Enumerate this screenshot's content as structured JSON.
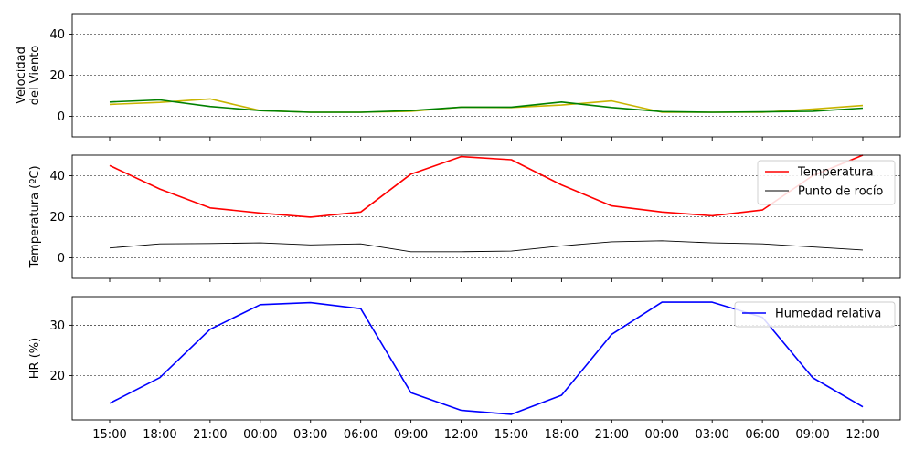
{
  "chart_data": [
    {
      "type": "line",
      "ylabel_lines": [
        "Velocidad",
        "del Viento"
      ],
      "ylim": [
        -10,
        50
      ],
      "yticks": [
        0,
        20,
        40
      ],
      "grid": "horizontal-dashed",
      "legend": "none",
      "series": [
        {
          "color": "#c8b400",
          "values": [
            5.8,
            6.8,
            8.5,
            2.8,
            2.0,
            2.0,
            2.5,
            4.5,
            4.3,
            5.5,
            7.5,
            2.0,
            2.0,
            2.0,
            3.5,
            5.3
          ]
        },
        {
          "color": "#008000",
          "values": [
            7.0,
            8.0,
            4.8,
            2.8,
            2.0,
            2.0,
            2.8,
            4.5,
            4.5,
            7.0,
            4.3,
            2.3,
            2.0,
            2.2,
            2.5,
            4.0
          ]
        }
      ]
    },
    {
      "type": "line",
      "ylabel": "Temperatura (ºC)",
      "ylim": [
        -10,
        50
      ],
      "yticks": [
        0,
        20,
        40
      ],
      "grid": "horizontal-dashed",
      "legend": "top-right",
      "series": [
        {
          "name": "Temperatura",
          "color": "#ff0000",
          "values": [
            45.0,
            33.5,
            24.3,
            21.8,
            19.8,
            22.3,
            40.8,
            49.3,
            47.8,
            35.5,
            25.3,
            22.3,
            20.5,
            23.3,
            40.0,
            50.0
          ]
        },
        {
          "name": "Punto de rocío",
          "color": "#000000",
          "values": [
            4.8,
            6.8,
            7.0,
            7.3,
            6.3,
            6.8,
            3.0,
            3.0,
            3.3,
            5.8,
            7.8,
            8.3,
            7.3,
            6.8,
            5.3,
            3.8
          ]
        }
      ]
    },
    {
      "type": "line",
      "ylabel": "HR (%)",
      "ylim": [
        11.2,
        35.7
      ],
      "yticks": [
        20,
        30
      ],
      "grid": "horizontal-dashed",
      "legend": "top-right",
      "series": [
        {
          "name": "Humedad relativa",
          "color": "#0000ff",
          "values": [
            14.5,
            19.6,
            29.2,
            34.1,
            34.5,
            33.3,
            16.6,
            13.1,
            12.3,
            16.1,
            28.2,
            34.6,
            34.6,
            31.6,
            19.6,
            13.8
          ]
        }
      ]
    }
  ],
  "x_ticks": [
    "15:00",
    "18:00",
    "21:00",
    "00:00",
    "03:00",
    "06:00",
    "09:00",
    "12:00",
    "15:00",
    "18:00",
    "21:00",
    "00:00",
    "03:00",
    "06:00",
    "09:00",
    "12:00"
  ]
}
